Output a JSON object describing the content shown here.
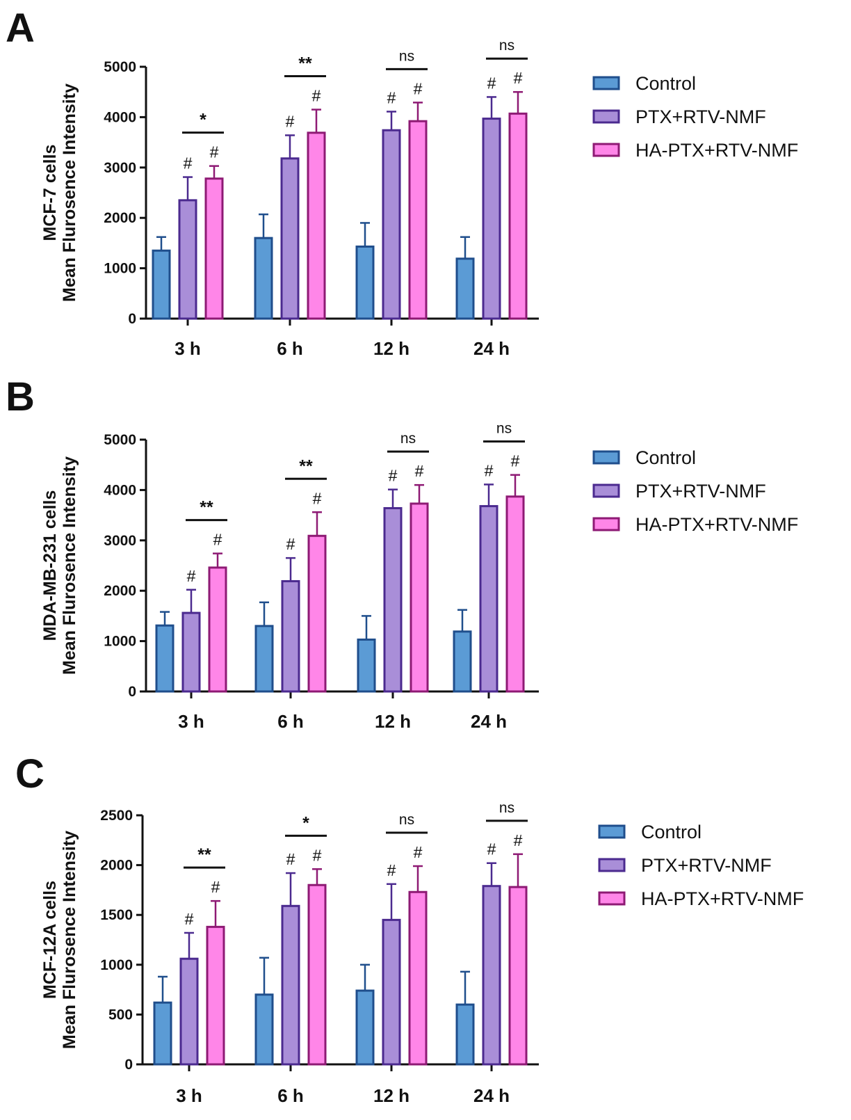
{
  "chart_data": [
    {
      "type": "bar",
      "panel_label": "A",
      "ylabel_line1": "MCF-7 cells",
      "ylabel_line2": "Mean Flurosence  Intensity",
      "categories": [
        "3 h",
        "6 h",
        "12 h",
        "24 h"
      ],
      "ylim": [
        0,
        5000
      ],
      "yticks": [
        0,
        1000,
        2000,
        3000,
        4000,
        5000
      ],
      "series": [
        {
          "name": "Control",
          "values": [
            1350,
            1600,
            1430,
            1190
          ],
          "errors": [
            270,
            470,
            470,
            430
          ]
        },
        {
          "name": "PTX+RTV-NMF",
          "values": [
            2350,
            3180,
            3740,
            3970
          ],
          "errors": [
            460,
            460,
            370,
            430
          ]
        },
        {
          "name": "HA-PTX+RTV-NMF",
          "values": [
            2780,
            3690,
            3920,
            4070
          ],
          "errors": [
            250,
            460,
            370,
            430
          ]
        }
      ],
      "hash_marks": [
        [
          false,
          true,
          true
        ],
        [
          false,
          true,
          true
        ],
        [
          false,
          true,
          true
        ],
        [
          false,
          true,
          true
        ]
      ],
      "significance": [
        "*",
        "**",
        "ns",
        "ns"
      ],
      "legend_position": "right"
    },
    {
      "type": "bar",
      "panel_label": "B",
      "ylabel_line1": "MDA-MB-231 cells",
      "ylabel_line2": "Mean Flurosence  Intensity",
      "categories": [
        "3 h",
        "6 h",
        "12 h",
        "24 h"
      ],
      "ylim": [
        0,
        5000
      ],
      "yticks": [
        0,
        1000,
        2000,
        3000,
        4000,
        5000
      ],
      "series": [
        {
          "name": "Control",
          "values": [
            1310,
            1300,
            1030,
            1190
          ],
          "errors": [
            270,
            470,
            470,
            430
          ]
        },
        {
          "name": "PTX+RTV-NMF",
          "values": [
            1560,
            2190,
            3640,
            3680
          ],
          "errors": [
            460,
            460,
            370,
            430
          ]
        },
        {
          "name": "HA-PTX+RTV-NMF",
          "values": [
            2460,
            3090,
            3730,
            3870
          ],
          "errors": [
            280,
            470,
            370,
            430
          ]
        }
      ],
      "hash_marks": [
        [
          false,
          true,
          true
        ],
        [
          false,
          true,
          true
        ],
        [
          false,
          true,
          true
        ],
        [
          false,
          true,
          true
        ]
      ],
      "significance": [
        "**",
        "**",
        "ns",
        "ns"
      ],
      "legend_position": "right"
    },
    {
      "type": "bar",
      "panel_label": "C",
      "ylabel_line1": "MCF-12A cells",
      "ylabel_line2": "Mean Flurosence  Intensity",
      "categories": [
        "3 h",
        "6 h",
        "12 h",
        "24 h"
      ],
      "ylim": [
        0,
        2500
      ],
      "yticks": [
        0,
        500,
        1000,
        1500,
        2000,
        2500
      ],
      "series": [
        {
          "name": "Control",
          "values": [
            620,
            700,
            740,
            600
          ],
          "errors": [
            260,
            370,
            260,
            330
          ]
        },
        {
          "name": "PTX+RTV-NMF",
          "values": [
            1060,
            1590,
            1450,
            1790
          ],
          "errors": [
            260,
            330,
            360,
            230
          ]
        },
        {
          "name": "HA-PTX+RTV-NMF",
          "values": [
            1380,
            1800,
            1730,
            1780
          ],
          "errors": [
            260,
            160,
            260,
            330
          ]
        }
      ],
      "hash_marks": [
        [
          false,
          true,
          true
        ],
        [
          false,
          true,
          true
        ],
        [
          false,
          true,
          true
        ],
        [
          false,
          true,
          true
        ]
      ],
      "significance": [
        "**",
        "*",
        "ns",
        "ns"
      ],
      "legend_position": "right"
    }
  ],
  "hash_symbol": "#",
  "colors": {
    "Control": {
      "fill": "#5b9bd5",
      "stroke": "#1f4e8c"
    },
    "PTX+RTV-NMF": {
      "fill": "#a98ed8",
      "stroke": "#4b2a8f"
    },
    "HA-PTX+RTV-NMF": {
      "fill": "#ff86e8",
      "stroke": "#8e1a74"
    },
    "axis": "#111111"
  }
}
